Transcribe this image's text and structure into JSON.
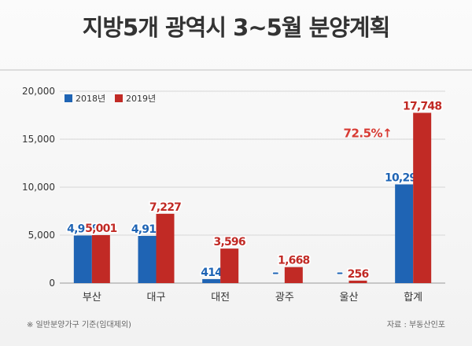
{
  "chart_data": {
    "type": "bar",
    "title": "지방5개 광역시 3~5월 분양계획",
    "categories": [
      "부산",
      "대구",
      "대전",
      "광주",
      "울산",
      "합계"
    ],
    "series": [
      {
        "name": "2018년",
        "color": "#1f64b4",
        "values": [
          4959,
          4917,
          414,
          0,
          0,
          10290
        ],
        "labels": [
          "4,959",
          "4,917",
          "414",
          "-",
          "-",
          "10,290"
        ]
      },
      {
        "name": "2019년",
        "color": "#c12a25",
        "values": [
          5001,
          7227,
          3596,
          1668,
          256,
          17748
        ],
        "labels": [
          "5,001",
          "7,227",
          "3,596",
          "1,668",
          "256",
          "17,748"
        ]
      }
    ],
    "yticks": [
      0,
      5000,
      10000,
      15000,
      20000
    ],
    "ytick_labels": [
      "0",
      "5,000",
      "10,000",
      "15,000",
      "20,000"
    ],
    "ylim": [
      0,
      20000
    ],
    "annotation": "72.5%↑",
    "annotation_color": "#d83a33",
    "legend_position": "top-left",
    "footnote": "※ 일반분양가구 기준(임대제외)",
    "source": "자료 : 부동산인포"
  }
}
